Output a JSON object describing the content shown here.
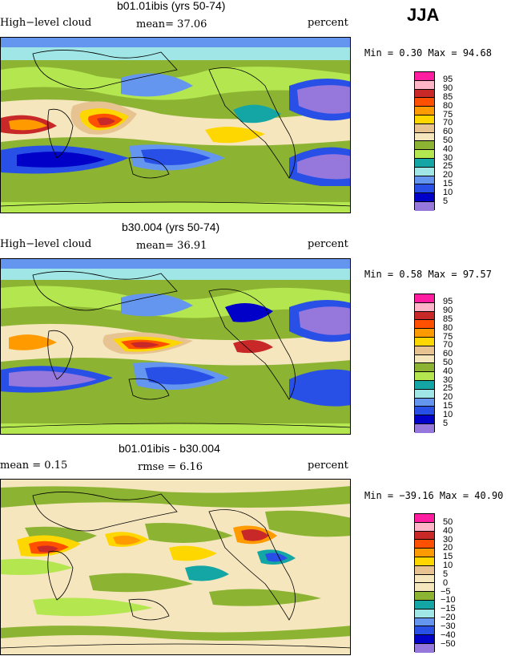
{
  "season": "JJA",
  "panels": [
    {
      "title": "b01.01ibis (yrs 50-74)",
      "left_label": "High−level cloud",
      "mean_text": "mean=   37.06",
      "units": "percent",
      "minmax": "Min =    0.30 Max =   94.68",
      "colorbar": {
        "labels": [
          "95",
          "90",
          "85",
          "80",
          "75",
          "70",
          "60",
          "50",
          "40",
          "30",
          "25",
          "20",
          "15",
          "10",
          "5"
        ],
        "colors": [
          "#ff1ea0",
          "#ffb4c8",
          "#c82828",
          "#ff5000",
          "#ff9b00",
          "#ffd700",
          "#e6c391",
          "#f5e6be",
          "#8cb432",
          "#b4e650",
          "#14a5a5",
          "#a0e6e6",
          "#6496f0",
          "#2850e6",
          "#0000c8",
          "#9678dc"
        ]
      }
    },
    {
      "title": "b30.004 (yrs 50-74)",
      "left_label": "High−level cloud",
      "mean_text": "mean=   36.91",
      "units": "percent",
      "minmax": "Min =    0.58 Max =   97.57",
      "colorbar": {
        "labels": [
          "95",
          "90",
          "85",
          "80",
          "75",
          "70",
          "60",
          "50",
          "40",
          "30",
          "25",
          "20",
          "15",
          "10",
          "5"
        ],
        "colors": [
          "#ff1ea0",
          "#ffb4c8",
          "#c82828",
          "#ff5000",
          "#ff9b00",
          "#ffd700",
          "#e6c391",
          "#f5e6be",
          "#8cb432",
          "#b4e650",
          "#14a5a5",
          "#a0e6e6",
          "#6496f0",
          "#2850e6",
          "#0000c8",
          "#9678dc"
        ]
      }
    },
    {
      "title": "b01.01ibis - b30.004",
      "left_label": "mean =    0.15",
      "mean_text": "rmse =    6.16",
      "units": "percent",
      "minmax": "Min = −39.16 Max =   40.90",
      "colorbar": {
        "labels": [
          "50",
          "40",
          "30",
          "20",
          "15",
          "10",
          "5",
          "0",
          "−5",
          "−10",
          "−15",
          "−20",
          "−30",
          "−40",
          "−50"
        ],
        "colors": [
          "#ff1ea0",
          "#ffb4c8",
          "#c82828",
          "#ff5000",
          "#ff9b00",
          "#ffd700",
          "#e6c391",
          "#f5e6be",
          "#f5e6be",
          "#8cb432",
          "#14a5a5",
          "#a0e6e6",
          "#6496f0",
          "#2850e6",
          "#0000c8",
          "#9678dc"
        ]
      }
    }
  ]
}
